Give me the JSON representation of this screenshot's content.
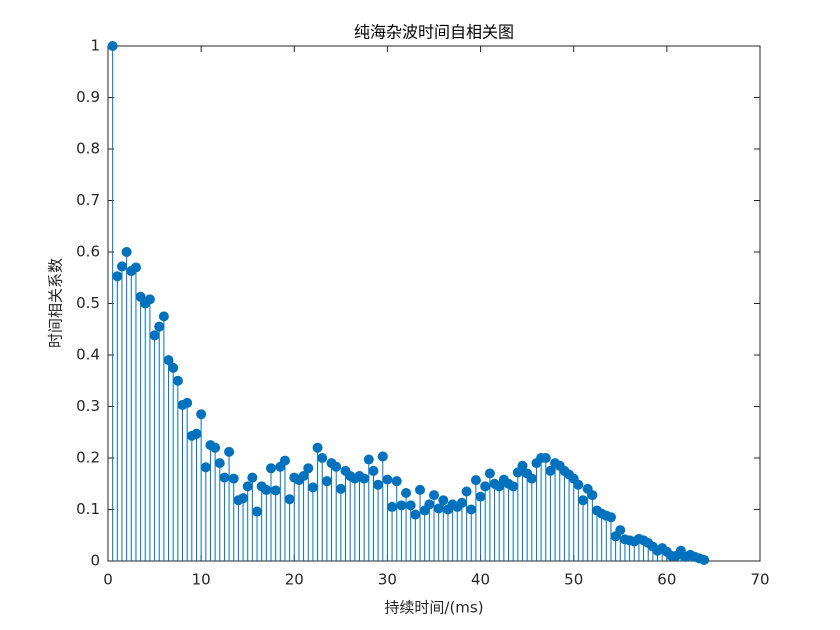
{
  "chart_data": {
    "type": "stem",
    "title": "纯海杂波时间自相关图",
    "xlabel": "持续时间/(ms)",
    "ylabel": "时间相关系数",
    "color": "#0072bd",
    "x": [
      0.5,
      1,
      1.5,
      2,
      2.5,
      3,
      3.5,
      4,
      4.5,
      5,
      5.5,
      6,
      6.5,
      7,
      7.5,
      8,
      8.5,
      9,
      9.5,
      10,
      10.5,
      11,
      11.5,
      12,
      12.5,
      13,
      13.5,
      14,
      14.5,
      15,
      15.5,
      16,
      16.5,
      17,
      17.5,
      18,
      18.5,
      19,
      19.5,
      20,
      20.5,
      21,
      21.5,
      22,
      22.5,
      23,
      23.5,
      24,
      24.5,
      25,
      25.5,
      26,
      26.5,
      27,
      27.5,
      28,
      28.5,
      29,
      29.5,
      30,
      30.5,
      31,
      31.5,
      32,
      32.5,
      33,
      33.5,
      34,
      34.5,
      35,
      35.5,
      36,
      36.5,
      37,
      37.5,
      38,
      38.5,
      39,
      39.5,
      40,
      40.5,
      41,
      41.5,
      42,
      42.5,
      43,
      43.5,
      44,
      44.5,
      45,
      45.5,
      46,
      46.5,
      47,
      47.5,
      48,
      48.5,
      49,
      49.5,
      50,
      50.5,
      51,
      51.5,
      52,
      52.5,
      53,
      53.5,
      54,
      54.5,
      55,
      55.5,
      56,
      56.5,
      57,
      57.5,
      58,
      58.5,
      59,
      59.5,
      60,
      60.5,
      61,
      61.5,
      62,
      62.5,
      63,
      63.5,
      64
    ],
    "values": [
      1.0,
      0.553,
      0.572,
      0.6,
      0.563,
      0.57,
      0.513,
      0.5,
      0.508,
      0.438,
      0.455,
      0.475,
      0.39,
      0.375,
      0.35,
      0.303,
      0.307,
      0.243,
      0.247,
      0.285,
      0.182,
      0.225,
      0.22,
      0.19,
      0.162,
      0.212,
      0.16,
      0.118,
      0.122,
      0.145,
      0.162,
      0.096,
      0.145,
      0.138,
      0.18,
      0.137,
      0.183,
      0.195,
      0.12,
      0.162,
      0.157,
      0.165,
      0.18,
      0.143,
      0.22,
      0.2,
      0.155,
      0.19,
      0.183,
      0.14,
      0.175,
      0.165,
      0.16,
      0.165,
      0.16,
      0.197,
      0.175,
      0.148,
      0.203,
      0.158,
      0.105,
      0.155,
      0.108,
      0.132,
      0.108,
      0.09,
      0.138,
      0.098,
      0.11,
      0.128,
      0.102,
      0.118,
      0.1,
      0.11,
      0.105,
      0.113,
      0.135,
      0.1,
      0.157,
      0.125,
      0.145,
      0.17,
      0.15,
      0.145,
      0.158,
      0.15,
      0.145,
      0.172,
      0.185,
      0.17,
      0.16,
      0.19,
      0.2,
      0.2,
      0.175,
      0.19,
      0.185,
      0.175,
      0.168,
      0.16,
      0.148,
      0.118,
      0.14,
      0.128,
      0.098,
      0.092,
      0.088,
      0.085,
      0.048,
      0.06,
      0.042,
      0.04,
      0.038,
      0.043,
      0.04,
      0.035,
      0.028,
      0.02,
      0.025,
      0.018,
      0.01,
      0.01,
      0.02,
      0.008,
      0.012,
      0.008,
      0.005,
      0.002
    ],
    "xlim": [
      0,
      70
    ],
    "xticks": [
      0,
      10,
      20,
      30,
      40,
      50,
      60,
      70
    ],
    "ylim": [
      0,
      1
    ],
    "yticks": [
      0,
      0.1,
      0.2,
      0.3,
      0.4,
      0.5,
      0.6,
      0.7,
      0.8,
      0.9,
      1
    ]
  }
}
